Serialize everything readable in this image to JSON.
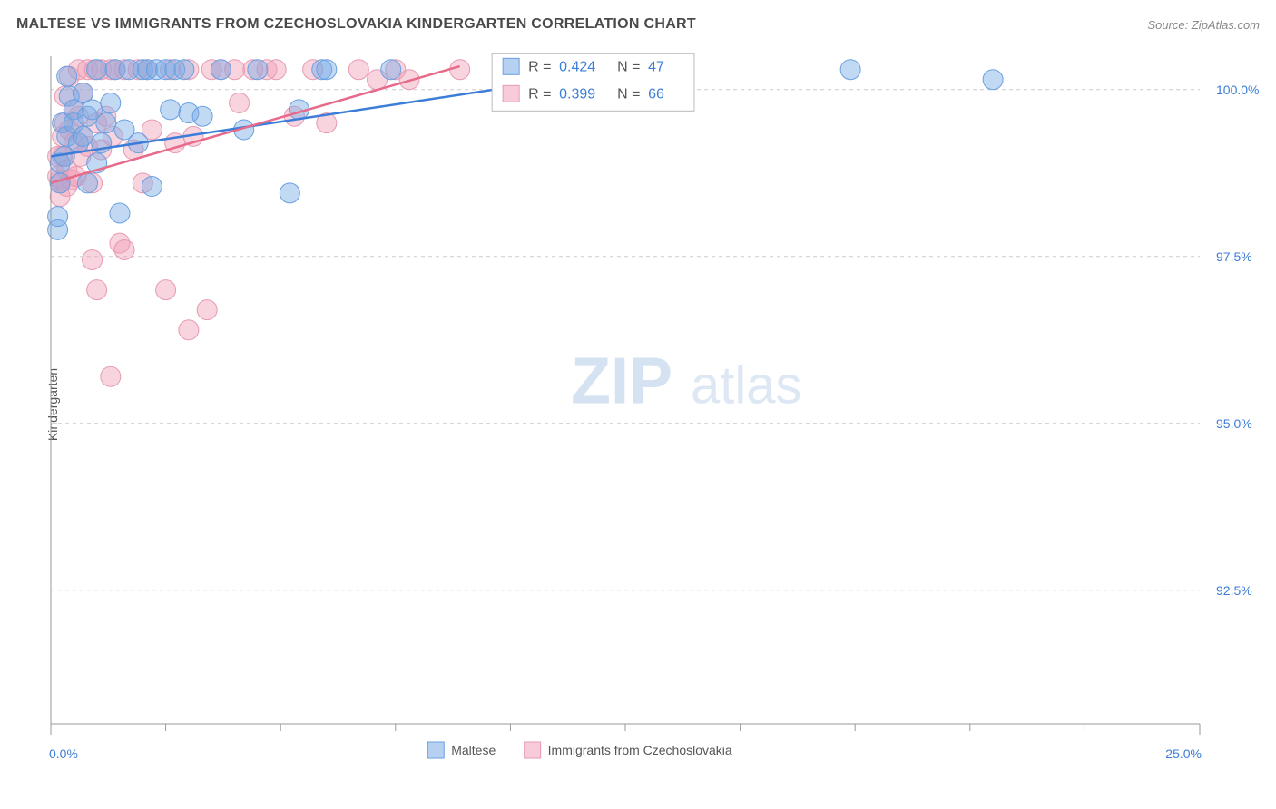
{
  "title": "MALTESE VS IMMIGRANTS FROM CZECHOSLOVAKIA KINDERGARTEN CORRELATION CHART",
  "source": "Source: ZipAtlas.com",
  "y_axis_label": "Kindergarten",
  "watermark": {
    "part1": "ZIP",
    "part2": "atlas"
  },
  "chart": {
    "type": "scatter",
    "background_color": "#ffffff",
    "grid_color": "#cccccc",
    "axis_color": "#999999",
    "tick_color": "#3b7dd8",
    "xlim": [
      0,
      25
    ],
    "ylim": [
      90.5,
      100.5
    ],
    "x_ticks": [
      0.0,
      25.0
    ],
    "x_tick_labels": [
      "0.0%",
      "25.0%"
    ],
    "x_minor_ticks": [
      2.5,
      5.0,
      7.5,
      10.0,
      12.5,
      15.0,
      17.5,
      20.0,
      22.5
    ],
    "y_ticks": [
      92.5,
      95.0,
      97.5,
      100.0
    ],
    "y_tick_labels": [
      "92.5%",
      "95.0%",
      "97.5%",
      "100.0%"
    ],
    "marker_radius": 11,
    "series": [
      {
        "name": "Maltese",
        "color_fill": "rgba(120,170,230,0.45)",
        "color_stroke": "#6aa0e0",
        "r": 0.424,
        "n": 47,
        "trend": {
          "x1": 0.0,
          "y1": 99.0,
          "x2": 10.6,
          "y2": 100.1
        },
        "points": [
          [
            0.15,
            97.9
          ],
          [
            0.15,
            98.1
          ],
          [
            0.2,
            98.6
          ],
          [
            0.2,
            98.9
          ],
          [
            0.25,
            99.5
          ],
          [
            0.3,
            99.0
          ],
          [
            0.35,
            99.3
          ],
          [
            0.35,
            100.2
          ],
          [
            0.4,
            99.9
          ],
          [
            0.5,
            99.7
          ],
          [
            0.5,
            99.5
          ],
          [
            0.6,
            99.2
          ],
          [
            0.7,
            99.95
          ],
          [
            0.7,
            99.3
          ],
          [
            0.8,
            98.6
          ],
          [
            0.8,
            99.6
          ],
          [
            0.9,
            99.7
          ],
          [
            1.0,
            98.9
          ],
          [
            1.0,
            100.3
          ],
          [
            1.1,
            99.2
          ],
          [
            1.2,
            99.5
          ],
          [
            1.3,
            99.8
          ],
          [
            1.4,
            100.3
          ],
          [
            1.5,
            98.15
          ],
          [
            1.6,
            99.4
          ],
          [
            1.7,
            100.3
          ],
          [
            1.9,
            99.2
          ],
          [
            2.0,
            100.3
          ],
          [
            2.1,
            100.3
          ],
          [
            2.2,
            98.55
          ],
          [
            2.3,
            100.3
          ],
          [
            2.5,
            100.3
          ],
          [
            2.6,
            99.7
          ],
          [
            2.7,
            100.3
          ],
          [
            2.9,
            100.3
          ],
          [
            3.0,
            99.65
          ],
          [
            3.3,
            99.6
          ],
          [
            3.7,
            100.3
          ],
          [
            4.2,
            99.4
          ],
          [
            4.5,
            100.3
          ],
          [
            5.2,
            98.45
          ],
          [
            5.4,
            99.7
          ],
          [
            5.9,
            100.3
          ],
          [
            6.0,
            100.3
          ],
          [
            7.4,
            100.3
          ],
          [
            17.4,
            100.3
          ],
          [
            20.5,
            100.15
          ]
        ]
      },
      {
        "name": "Immigrants from Czechoslovakia",
        "color_fill": "rgba(240,160,185,0.45)",
        "color_stroke": "#e79ab0",
        "r": 0.399,
        "n": 66,
        "trend": {
          "x1": 0.0,
          "y1": 98.6,
          "x2": 8.9,
          "y2": 100.35
        },
        "points": [
          [
            0.15,
            98.7
          ],
          [
            0.15,
            99.0
          ],
          [
            0.2,
            98.6
          ],
          [
            0.2,
            98.4
          ],
          [
            0.2,
            98.65
          ],
          [
            0.25,
            99.0
          ],
          [
            0.25,
            99.3
          ],
          [
            0.3,
            99.5
          ],
          [
            0.3,
            99.9
          ],
          [
            0.35,
            98.8
          ],
          [
            0.35,
            98.55
          ],
          [
            0.4,
            99.4
          ],
          [
            0.4,
            100.2
          ],
          [
            0.45,
            98.65
          ],
          [
            0.5,
            99.7
          ],
          [
            0.5,
            99.2
          ],
          [
            0.55,
            98.7
          ],
          [
            0.6,
            99.6
          ],
          [
            0.6,
            100.3
          ],
          [
            0.65,
            99.0
          ],
          [
            0.7,
            99.3
          ],
          [
            0.7,
            99.95
          ],
          [
            0.8,
            99.15
          ],
          [
            0.8,
            100.3
          ],
          [
            0.9,
            97.45
          ],
          [
            0.9,
            98.6
          ],
          [
            0.95,
            100.3
          ],
          [
            1.0,
            99.5
          ],
          [
            1.0,
            97.0
          ],
          [
            1.1,
            99.1
          ],
          [
            1.1,
            100.3
          ],
          [
            1.2,
            99.6
          ],
          [
            1.3,
            95.7
          ],
          [
            1.3,
            100.3
          ],
          [
            1.35,
            99.3
          ],
          [
            1.4,
            100.3
          ],
          [
            1.5,
            97.7
          ],
          [
            1.6,
            97.6
          ],
          [
            1.6,
            100.3
          ],
          [
            1.8,
            99.1
          ],
          [
            1.9,
            100.3
          ],
          [
            2.0,
            98.6
          ],
          [
            2.1,
            100.3
          ],
          [
            2.2,
            99.4
          ],
          [
            2.5,
            97.0
          ],
          [
            2.6,
            100.3
          ],
          [
            2.7,
            99.2
          ],
          [
            3.0,
            100.3
          ],
          [
            3.0,
            96.4
          ],
          [
            3.1,
            99.3
          ],
          [
            3.4,
            96.7
          ],
          [
            3.5,
            100.3
          ],
          [
            3.7,
            100.3
          ],
          [
            4.0,
            100.3
          ],
          [
            4.1,
            99.8
          ],
          [
            4.4,
            100.3
          ],
          [
            4.7,
            100.3
          ],
          [
            4.9,
            100.3
          ],
          [
            5.3,
            99.6
          ],
          [
            5.7,
            100.3
          ],
          [
            6.0,
            99.5
          ],
          [
            6.7,
            100.3
          ],
          [
            7.1,
            100.15
          ],
          [
            7.5,
            100.3
          ],
          [
            7.8,
            100.15
          ],
          [
            8.9,
            100.3
          ]
        ]
      }
    ],
    "stats_box": {
      "x": 9.6,
      "y_top": 100.55,
      "width_x": 4.4,
      "height_y": 0.95,
      "rows": [
        {
          "swatch": "blue",
          "r_label": "R =",
          "r_val": "0.424",
          "n_label": "N =",
          "n_val": "47"
        },
        {
          "swatch": "pink",
          "r_label": "R =",
          "r_val": "0.399",
          "n_label": "N =",
          "n_val": "66"
        }
      ]
    },
    "bottom_legend": [
      {
        "swatch": "blue",
        "label": "Maltese"
      },
      {
        "swatch": "pink",
        "label": "Immigrants from Czechoslovakia"
      }
    ]
  }
}
